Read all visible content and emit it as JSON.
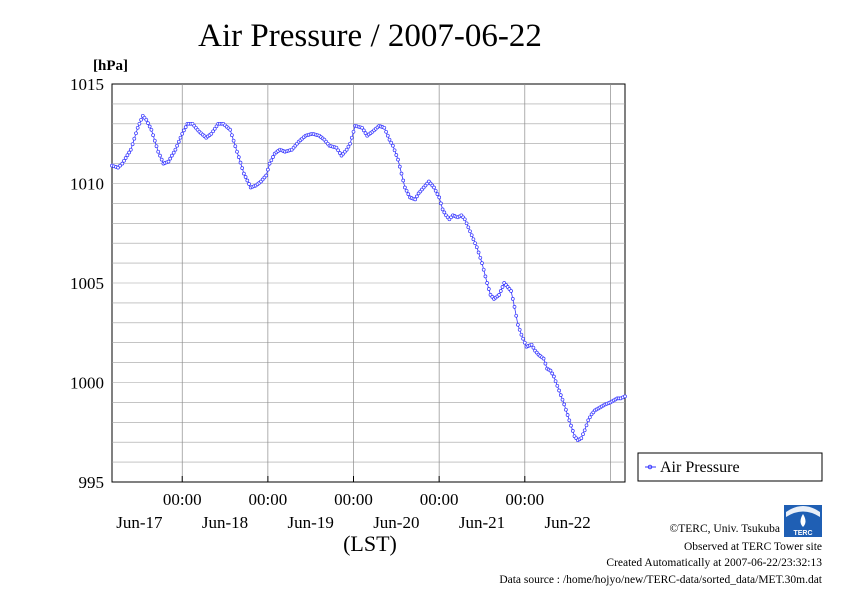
{
  "chart_data": {
    "type": "line",
    "title": "Air Pressure / 2007-06-22",
    "ylabel": "[hPa]",
    "xlabel": "(LST)",
    "ylim": [
      995,
      1015
    ],
    "yticks": [
      995,
      1000,
      1005,
      1010,
      1015
    ],
    "xlim_days_from_jun16_midnight": [
      0.18,
      6.17
    ],
    "xtick_top_labels": [
      "00:00",
      "00:00",
      "00:00",
      "00:00",
      "00:00"
    ],
    "xtick_bottom_labels": [
      "Jun-17",
      "Jun-18",
      "Jun-19",
      "Jun-20",
      "Jun-21",
      "Jun-22"
    ],
    "grid": true,
    "legend": "right",
    "series": [
      {
        "name": "Air Pressure",
        "color": "#3333ff",
        "x_day": [
          0.18,
          0.25,
          0.3,
          0.4,
          0.48,
          0.54,
          0.58,
          0.64,
          0.72,
          0.78,
          0.84,
          0.92,
          1.0,
          1.06,
          1.12,
          1.2,
          1.28,
          1.34,
          1.42,
          1.48,
          1.56,
          1.64,
          1.72,
          1.8,
          1.86,
          1.92,
          1.98,
          2.02,
          2.08,
          2.14,
          2.2,
          2.28,
          2.36,
          2.44,
          2.52,
          2.6,
          2.66,
          2.72,
          2.8,
          2.86,
          2.92,
          2.96,
          3.02,
          3.1,
          3.16,
          3.22,
          3.3,
          3.36,
          3.42,
          3.46,
          3.52,
          3.56,
          3.6,
          3.66,
          3.72,
          3.76,
          3.82,
          3.88,
          3.94,
          4.0,
          4.04,
          4.08,
          4.12,
          4.16,
          4.22,
          4.26,
          4.3,
          4.34,
          4.4,
          4.44,
          4.5,
          4.56,
          4.6,
          4.64,
          4.7,
          4.76,
          4.8,
          4.84,
          4.88,
          4.92,
          4.96,
          5.02,
          5.08,
          5.12,
          5.16,
          5.22,
          5.26,
          5.3,
          5.34,
          5.4,
          5.46,
          5.52,
          5.58,
          5.62,
          5.66,
          5.7,
          5.74,
          5.78,
          5.82,
          5.86,
          5.9,
          5.94,
          6.0,
          6.04,
          6.08,
          6.12,
          6.17
        ],
        "values": [
          1010.9,
          1010.8,
          1011.0,
          1011.7,
          1012.8,
          1013.4,
          1013.2,
          1012.7,
          1011.6,
          1011.0,
          1011.1,
          1011.7,
          1012.5,
          1013.0,
          1013.0,
          1012.6,
          1012.3,
          1012.5,
          1013.0,
          1013.0,
          1012.7,
          1011.6,
          1010.5,
          1009.8,
          1009.9,
          1010.1,
          1010.4,
          1011.0,
          1011.5,
          1011.7,
          1011.6,
          1011.7,
          1012.1,
          1012.4,
          1012.5,
          1012.4,
          1012.2,
          1011.9,
          1011.8,
          1011.4,
          1011.7,
          1012.0,
          1012.9,
          1012.8,
          1012.4,
          1012.6,
          1012.9,
          1012.8,
          1012.2,
          1011.9,
          1011.2,
          1010.5,
          1009.8,
          1009.3,
          1009.2,
          1009.5,
          1009.8,
          1010.1,
          1009.8,
          1009.3,
          1008.7,
          1008.4,
          1008.2,
          1008.4,
          1008.3,
          1008.4,
          1008.2,
          1007.8,
          1007.2,
          1006.8,
          1006.0,
          1005.0,
          1004.4,
          1004.2,
          1004.4,
          1005.0,
          1004.8,
          1004.6,
          1003.8,
          1002.9,
          1002.4,
          1001.8,
          1001.9,
          1001.6,
          1001.4,
          1001.2,
          1000.7,
          1000.6,
          1000.3,
          999.6,
          998.9,
          998.1,
          997.3,
          997.1,
          997.2,
          997.6,
          998.1,
          998.4,
          998.6,
          998.7,
          998.8,
          998.9,
          999.0,
          999.1,
          999.2,
          999.2,
          999.3
        ]
      }
    ]
  },
  "credits": {
    "copyright": "©TERC, Univ. Tsukuba",
    "observed": "Observed at TERC Tower site",
    "created": "Created Automatically at 2007-06-22/23:32:13",
    "source": "Data source : /home/hojyo/new/TERC-data/sorted_data/MET.30m.dat"
  },
  "logo": {
    "text": "TERC",
    "color": "#1f5fb4"
  }
}
